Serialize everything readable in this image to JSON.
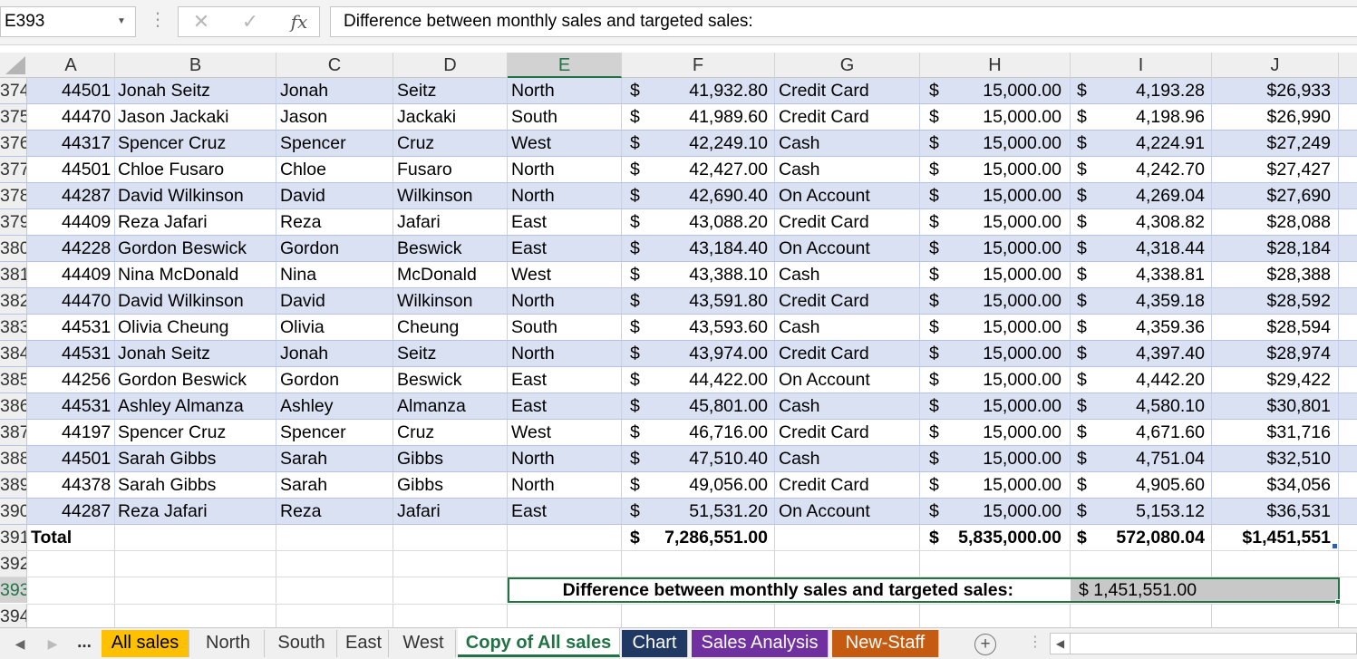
{
  "formula_bar": {
    "name_box": "E393",
    "cancel_glyph": "✕",
    "enter_glyph": "✓",
    "fx_label": "fx",
    "formula": "Difference between monthly sales and targeted sales:"
  },
  "columns": [
    "A",
    "B",
    "C",
    "D",
    "E",
    "F",
    "G",
    "H",
    "I",
    "J"
  ],
  "selected_column": "E",
  "selected_row": "393",
  "rows": [
    {
      "num": "374",
      "a": "44501",
      "b": "Jonah Seitz",
      "c": "Jonah",
      "d": "Seitz",
      "e": "North",
      "f": "41,932.80",
      "g": "Credit Card",
      "h": "15,000.00",
      "i": "4,193.28",
      "j": "$26,933"
    },
    {
      "num": "375",
      "a": "44470",
      "b": "Jason Jackaki",
      "c": "Jason",
      "d": "Jackaki",
      "e": "South",
      "f": "41,989.60",
      "g": "Credit Card",
      "h": "15,000.00",
      "i": "4,198.96",
      "j": "$26,990"
    },
    {
      "num": "376",
      "a": "44317",
      "b": "Spencer Cruz",
      "c": "Spencer",
      "d": "Cruz",
      "e": "West",
      "f": "42,249.10",
      "g": "Cash",
      "h": "15,000.00",
      "i": "4,224.91",
      "j": "$27,249"
    },
    {
      "num": "377",
      "a": "44501",
      "b": "Chloe Fusaro",
      "c": "Chloe",
      "d": "Fusaro",
      "e": "North",
      "f": "42,427.00",
      "g": "Cash",
      "h": "15,000.00",
      "i": "4,242.70",
      "j": "$27,427"
    },
    {
      "num": "378",
      "a": "44287",
      "b": "David Wilkinson",
      "c": "David",
      "d": "Wilkinson",
      "e": "North",
      "f": "42,690.40",
      "g": "On Account",
      "h": "15,000.00",
      "i": "4,269.04",
      "j": "$27,690"
    },
    {
      "num": "379",
      "a": "44409",
      "b": "Reza Jafari",
      "c": "Reza",
      "d": "Jafari",
      "e": "East",
      "f": "43,088.20",
      "g": "Credit Card",
      "h": "15,000.00",
      "i": "4,308.82",
      "j": "$28,088"
    },
    {
      "num": "380",
      "a": "44228",
      "b": "Gordon Beswick",
      "c": "Gordon",
      "d": "Beswick",
      "e": "East",
      "f": "43,184.40",
      "g": "On Account",
      "h": "15,000.00",
      "i": "4,318.44",
      "j": "$28,184"
    },
    {
      "num": "381",
      "a": "44409",
      "b": "Nina McDonald",
      "c": "Nina",
      "d": "McDonald",
      "e": "West",
      "f": "43,388.10",
      "g": "Cash",
      "h": "15,000.00",
      "i": "4,338.81",
      "j": "$28,388"
    },
    {
      "num": "382",
      "a": "44470",
      "b": "David Wilkinson",
      "c": "David",
      "d": "Wilkinson",
      "e": "North",
      "f": "43,591.80",
      "g": "Credit Card",
      "h": "15,000.00",
      "i": "4,359.18",
      "j": "$28,592"
    },
    {
      "num": "383",
      "a": "44531",
      "b": "Olivia Cheung",
      "c": "Olivia",
      "d": "Cheung",
      "e": "South",
      "f": "43,593.60",
      "g": "Cash",
      "h": "15,000.00",
      "i": "4,359.36",
      "j": "$28,594"
    },
    {
      "num": "384",
      "a": "44531",
      "b": "Jonah Seitz",
      "c": "Jonah",
      "d": "Seitz",
      "e": "North",
      "f": "43,974.00",
      "g": "Credit Card",
      "h": "15,000.00",
      "i": "4,397.40",
      "j": "$28,974"
    },
    {
      "num": "385",
      "a": "44256",
      "b": "Gordon Beswick",
      "c": "Gordon",
      "d": "Beswick",
      "e": "East",
      "f": "44,422.00",
      "g": "On Account",
      "h": "15,000.00",
      "i": "4,442.20",
      "j": "$29,422"
    },
    {
      "num": "386",
      "a": "44531",
      "b": "Ashley Almanza",
      "c": "Ashley",
      "d": "Almanza",
      "e": "East",
      "f": "45,801.00",
      "g": "Cash",
      "h": "15,000.00",
      "i": "4,580.10",
      "j": "$30,801"
    },
    {
      "num": "387",
      "a": "44197",
      "b": "Spencer Cruz",
      "c": "Spencer",
      "d": "Cruz",
      "e": "West",
      "f": "46,716.00",
      "g": "Credit Card",
      "h": "15,000.00",
      "i": "4,671.60",
      "j": "$31,716"
    },
    {
      "num": "388",
      "a": "44501",
      "b": "Sarah Gibbs",
      "c": "Sarah",
      "d": "Gibbs",
      "e": "North",
      "f": "47,510.40",
      "g": "Cash",
      "h": "15,000.00",
      "i": "4,751.04",
      "j": "$32,510"
    },
    {
      "num": "389",
      "a": "44378",
      "b": "Sarah Gibbs",
      "c": "Sarah",
      "d": "Gibbs",
      "e": "North",
      "f": "49,056.00",
      "g": "Credit Card",
      "h": "15,000.00",
      "i": "4,905.60",
      "j": "$34,056"
    },
    {
      "num": "390",
      "a": "44287",
      "b": "Reza Jafari",
      "c": "Reza",
      "d": "Jafari",
      "e": "East",
      "f": "51,531.20",
      "g": "On Account",
      "h": "15,000.00",
      "i": "5,153.12",
      "j": "$36,531"
    }
  ],
  "currency_symbol": "$",
  "total_row": {
    "num": "391",
    "label": "Total",
    "f": "7,286,551.00",
    "h": "5,835,000.00",
    "i": "572,080.04",
    "j": "$1,451,551"
  },
  "empty_rows": {
    "r392": "392",
    "r394": "394"
  },
  "diff_row": {
    "num": "393",
    "label": "Difference between monthly sales and targeted sales:",
    "value": "$ 1,451,551.00"
  },
  "tabs": {
    "ellipsis": "...",
    "items": [
      {
        "label": "All sales",
        "bg": "#ffc000",
        "fg": "#000000"
      },
      {
        "label": "North",
        "bg": "",
        "fg": ""
      },
      {
        "label": "South",
        "bg": "",
        "fg": ""
      },
      {
        "label": "East",
        "bg": "",
        "fg": ""
      },
      {
        "label": "West",
        "bg": "",
        "fg": ""
      },
      {
        "label": "Copy of All sales",
        "bg": "",
        "fg": ""
      },
      {
        "label": "Chart",
        "bg": "#1f3864",
        "fg": "#ffffff"
      },
      {
        "label": "Sales Analysis",
        "bg": "#7030a0",
        "fg": "#ffffff"
      },
      {
        "label": "New-Staff",
        "bg": "#c55a11",
        "fg": "#ffffff"
      }
    ],
    "active": "Copy of All sales",
    "add_glyph": "+"
  },
  "colors": {
    "accent_green": "#217346",
    "band_blue": "#dae1f3"
  }
}
